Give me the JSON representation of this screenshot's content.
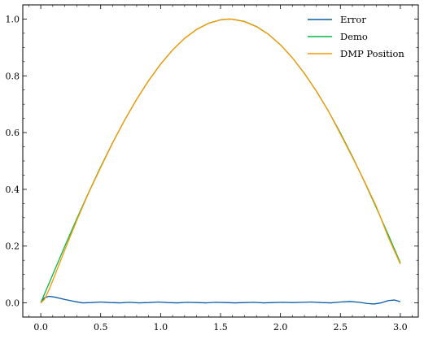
{
  "chart_data": {
    "type": "line",
    "title": "",
    "xlabel": "",
    "ylabel": "",
    "xlim": [
      -0.15,
      3.15
    ],
    "ylim": [
      -0.05,
      1.05
    ],
    "xticks": [
      0.0,
      0.5,
      1.0,
      1.5,
      2.0,
      2.5,
      3.0
    ],
    "xtick_labels": [
      "0.0",
      "0.5",
      "1.0",
      "1.5",
      "2.0",
      "2.5",
      "3.0"
    ],
    "yticks": [
      0.0,
      0.2,
      0.4,
      0.6,
      0.8,
      1.0
    ],
    "ytick_labels": [
      "0.0",
      "0.2",
      "0.4",
      "0.6",
      "0.8",
      "1.0"
    ],
    "grid": false,
    "legend_position": "top-right",
    "series": [
      {
        "name": "Error",
        "color": "#0c5da5",
        "x": [
          0.0,
          0.03,
          0.07,
          0.12,
          0.2,
          0.28,
          0.35,
          0.42,
          0.5,
          0.58,
          0.66,
          0.74,
          0.82,
          0.9,
          0.98,
          1.06,
          1.14,
          1.22,
          1.3,
          1.38,
          1.46,
          1.54,
          1.62,
          1.7,
          1.78,
          1.86,
          1.94,
          2.02,
          2.1,
          2.18,
          2.26,
          2.34,
          2.42,
          2.5,
          2.58,
          2.66,
          2.72,
          2.78,
          2.84,
          2.9,
          2.95,
          3.0
        ],
        "y": [
          0.0,
          0.018,
          0.023,
          0.02,
          0.012,
          0.005,
          0.0,
          0.001,
          0.003,
          0.001,
          0.0,
          0.002,
          0.0,
          0.001,
          0.003,
          0.001,
          0.0,
          0.002,
          0.001,
          0.0,
          0.002,
          0.001,
          0.0,
          0.001,
          0.002,
          0.0,
          0.001,
          0.002,
          0.001,
          0.002,
          0.003,
          0.001,
          0.0,
          0.003,
          0.005,
          0.002,
          -0.002,
          -0.004,
          0.0,
          0.008,
          0.01,
          0.004
        ]
      },
      {
        "name": "Demo",
        "color": "#00b945",
        "x": [
          0.0,
          0.1,
          0.2,
          0.3,
          0.4,
          0.5,
          0.6,
          0.7,
          0.8,
          0.9,
          1.0,
          1.1,
          1.2,
          1.3,
          1.4,
          1.5,
          1.5708,
          1.6,
          1.7,
          1.8,
          1.9,
          2.0,
          2.1,
          2.2,
          2.3,
          2.4,
          2.5,
          2.6,
          2.7,
          2.8,
          2.9,
          3.0
        ],
        "y": [
          0.0,
          0.0998,
          0.1987,
          0.2955,
          0.3894,
          0.4794,
          0.5646,
          0.6442,
          0.7174,
          0.7833,
          0.8415,
          0.8912,
          0.932,
          0.9636,
          0.9854,
          0.9975,
          1.0,
          0.9996,
          0.9917,
          0.9738,
          0.9463,
          0.9093,
          0.8632,
          0.8085,
          0.7457,
          0.6755,
          0.5985,
          0.5155,
          0.4274,
          0.335,
          0.2392,
          0.1411
        ]
      },
      {
        "name": "DMP Position",
        "color": "#ff9500",
        "x": [
          0.0,
          0.03,
          0.07,
          0.12,
          0.2,
          0.3,
          0.4,
          0.5,
          0.6,
          0.7,
          0.8,
          0.9,
          1.0,
          1.1,
          1.2,
          1.3,
          1.4,
          1.5,
          1.5708,
          1.6,
          1.7,
          1.8,
          1.9,
          2.0,
          2.1,
          2.2,
          2.3,
          2.4,
          2.5,
          2.6,
          2.7,
          2.8,
          2.9,
          3.0
        ],
        "y": [
          0.0,
          0.012,
          0.047,
          0.1,
          0.186,
          0.29,
          0.388,
          0.477,
          0.564,
          0.644,
          0.717,
          0.783,
          0.841,
          0.891,
          0.932,
          0.963,
          0.985,
          0.997,
          1.0,
          0.999,
          0.991,
          0.973,
          0.946,
          0.909,
          0.863,
          0.808,
          0.746,
          0.676,
          0.595,
          0.513,
          0.429,
          0.339,
          0.231,
          0.137
        ]
      }
    ]
  }
}
